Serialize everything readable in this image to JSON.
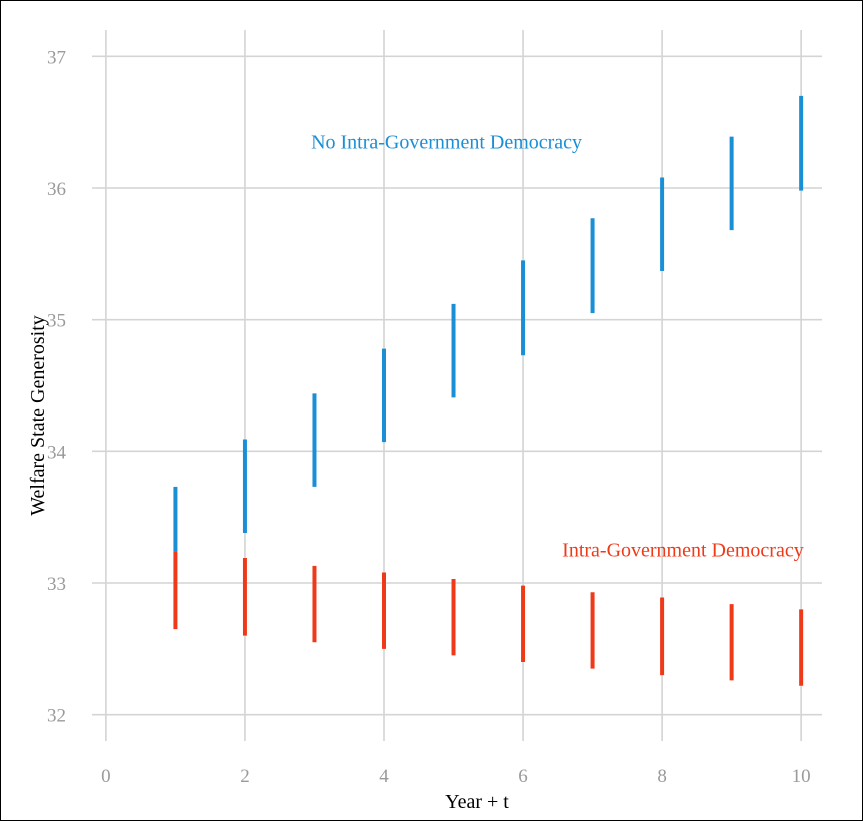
{
  "chart_data": {
    "type": "errorbar",
    "xlabel": "Year + t",
    "ylabel": "Welfare State Generosity",
    "xlim": [
      -0.2,
      10.3
    ],
    "ylim": [
      31.8,
      37.2
    ],
    "xticks": [
      0,
      2,
      4,
      6,
      8,
      10
    ],
    "yticks": [
      32,
      33,
      34,
      35,
      36,
      37
    ],
    "grid": true,
    "series": [
      {
        "name": "No Intra-Government Democracy",
        "color": "#1a8fd6",
        "label_at": [
          4.9,
          36.3
        ],
        "x": [
          1,
          2,
          3,
          4,
          5,
          6,
          7,
          8,
          9,
          10
        ],
        "lower": [
          33.24,
          33.38,
          33.73,
          34.07,
          34.41,
          34.73,
          35.05,
          35.37,
          35.68,
          35.98
        ],
        "upper": [
          33.73,
          34.09,
          34.44,
          34.78,
          35.12,
          35.45,
          35.77,
          36.08,
          36.39,
          36.7
        ]
      },
      {
        "name": "Intra-Government Democracy",
        "color": "#ef3a1a",
        "label_at": [
          8.3,
          33.2
        ],
        "x": [
          1,
          2,
          3,
          4,
          5,
          6,
          7,
          8,
          9,
          10
        ],
        "lower": [
          32.65,
          32.6,
          32.55,
          32.5,
          32.45,
          32.4,
          32.35,
          32.3,
          32.26,
          32.22
        ],
        "upper": [
          33.24,
          33.19,
          33.13,
          33.08,
          33.03,
          32.98,
          32.93,
          32.89,
          32.84,
          32.8
        ]
      }
    ]
  }
}
